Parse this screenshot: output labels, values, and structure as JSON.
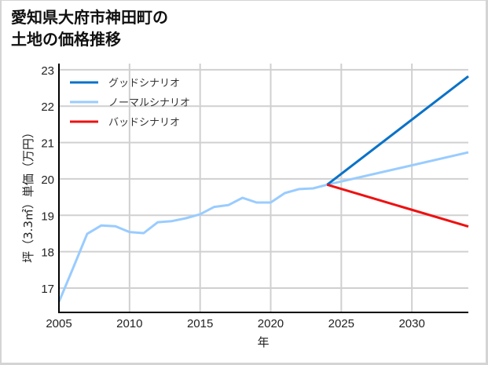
{
  "title": {
    "line1": "愛知県大府市神田町の",
    "line2": "土地の価格推移"
  },
  "chart_data": {
    "type": "line",
    "title": "愛知県大府市神田町の土地の価格推移",
    "xlabel": "年",
    "ylabel": "坪（3.3㎡）単価（万円）",
    "xlim": [
      2005,
      2034
    ],
    "ylim": [
      16.33,
      23.17
    ],
    "xticks": [
      2005,
      2010,
      2015,
      2020,
      2025,
      2030
    ],
    "yticks": [
      17,
      18,
      19,
      20,
      21,
      22,
      23
    ],
    "grid": true,
    "legend_position": "upper left",
    "series": [
      {
        "name": "グッドシナリオ",
        "color": "#0a72c8",
        "x": [
          2024,
          2034
        ],
        "values": [
          19.84,
          22.82
        ]
      },
      {
        "name": "ノーマルシナリオ",
        "color": "#99ccff",
        "x": [
          2005,
          2006,
          2007,
          2008,
          2009,
          2010,
          2011,
          2012,
          2013,
          2014,
          2015,
          2016,
          2017,
          2018,
          2019,
          2020,
          2021,
          2022,
          2023,
          2024,
          2034
        ],
        "values": [
          16.62,
          17.55,
          18.49,
          18.72,
          18.7,
          18.54,
          18.51,
          18.81,
          18.84,
          18.92,
          19.03,
          19.23,
          19.28,
          19.48,
          19.35,
          19.35,
          19.61,
          19.72,
          19.74,
          19.84,
          20.73
        ]
      },
      {
        "name": "バッドシナリオ",
        "color": "#ee1111",
        "x": [
          2024,
          2034
        ],
        "values": [
          19.84,
          18.69
        ]
      }
    ]
  }
}
